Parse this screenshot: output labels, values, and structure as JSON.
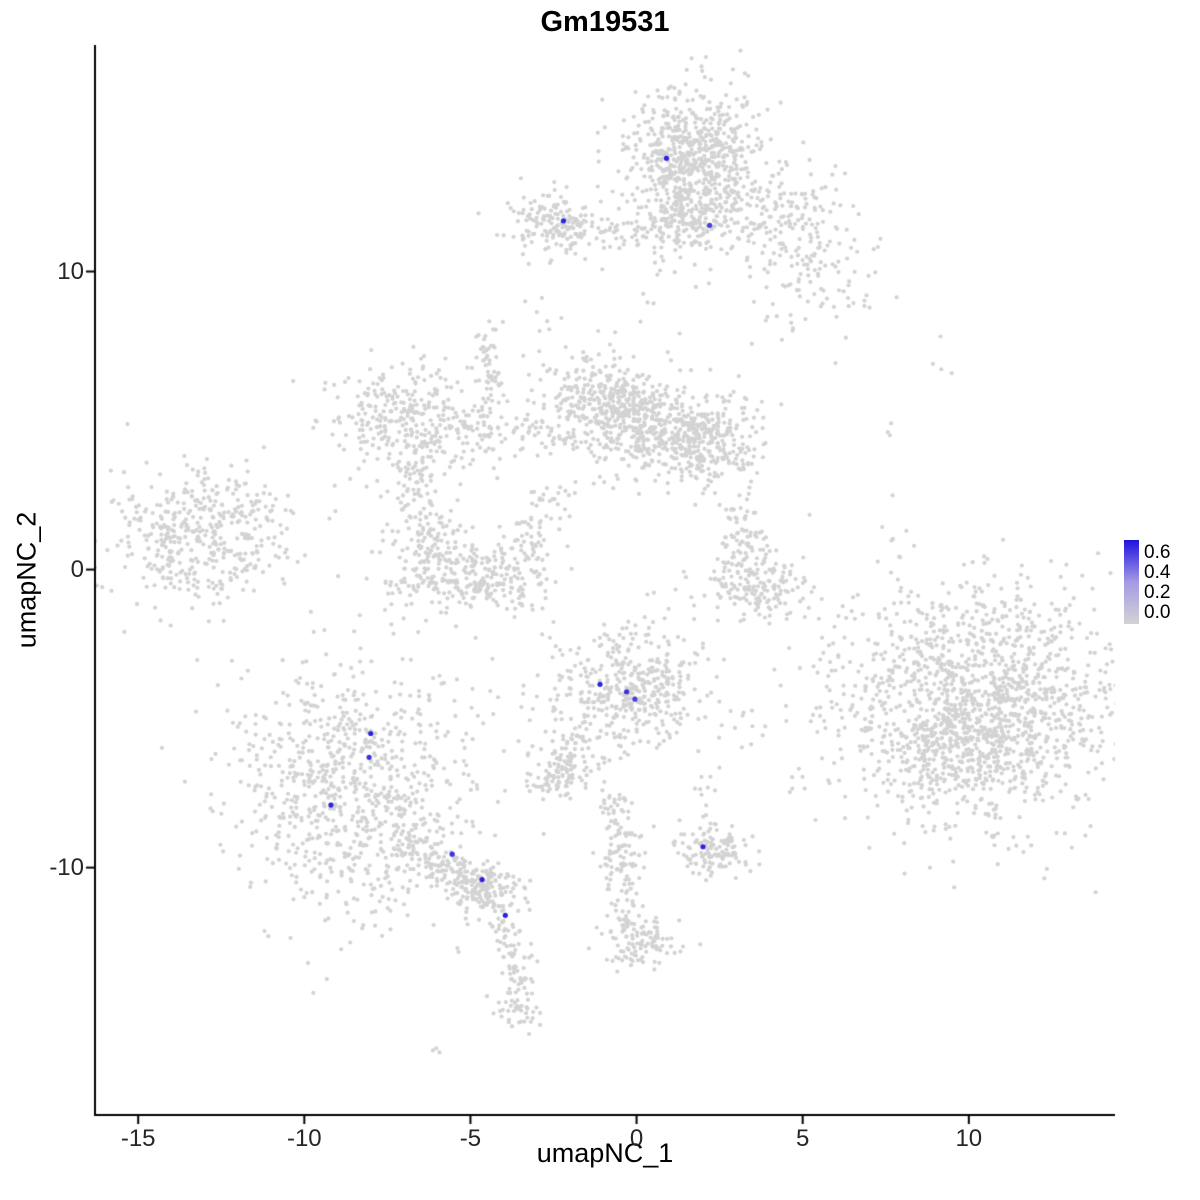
{
  "chart_data": {
    "type": "scatter",
    "title": "Gm19531",
    "xlabel": "umapNC_1",
    "ylabel": "umapNC_2",
    "xlim": [
      -16.3,
      14.4
    ],
    "ylim": [
      -18.3,
      17.6
    ],
    "x_ticks": [
      -15,
      -10,
      -5,
      0,
      5,
      10
    ],
    "y_ticks": [
      10,
      0,
      -10
    ],
    "grid": false,
    "background": "#ffffff",
    "point_color_background": "#d3d3d3",
    "legend": {
      "position": "right",
      "tick_labels": [
        "0.6",
        "0.4",
        "0.2",
        "0.0"
      ],
      "low_color": "#d3d3d3",
      "mid_color": "#a49ae4",
      "high_color": "#2012e0",
      "max_value": 0.65
    },
    "background_clusters": [
      {
        "shape": "blob",
        "cx": 1.7,
        "cy": 13.9,
        "sx": 1.0,
        "sy": 1.15,
        "n": 640
      },
      {
        "shape": "blob",
        "cx": 1.45,
        "cy": 11.7,
        "sx": 0.55,
        "sy": 0.75,
        "n": 150
      },
      {
        "shape": "blob",
        "cx": 3.9,
        "cy": 11.9,
        "sx": 1.25,
        "sy": 0.95,
        "n": 190
      },
      {
        "shape": "blob",
        "cx": 5.3,
        "cy": 10.0,
        "sx": 1.0,
        "sy": 1.0,
        "n": 85
      },
      {
        "shape": "blob",
        "cx": 6.3,
        "cy": 8.9,
        "sx": 0.5,
        "sy": 0.55,
        "n": 10
      },
      {
        "shape": "blob",
        "cx": -2.3,
        "cy": 11.6,
        "sx": 0.75,
        "sy": 0.5,
        "n": 165
      },
      {
        "shape": "strand",
        "x1": -1.3,
        "y1": 11.2,
        "x2": 0.9,
        "y2": 11.5,
        "w": 0.28,
        "n": 48
      },
      {
        "shape": "blob",
        "cx": -2.85,
        "cy": 8.75,
        "sx": 0.18,
        "sy": 0.35,
        "n": 6
      },
      {
        "shape": "blob",
        "cx": 0.1,
        "cy": 8.9,
        "sx": 0.2,
        "sy": 0.3,
        "n": 4
      },
      {
        "shape": "blob",
        "cx": -1.0,
        "cy": 5.6,
        "sx": 0.95,
        "sy": 0.85,
        "n": 320
      },
      {
        "shape": "blob",
        "cx": 0.4,
        "cy": 4.8,
        "sx": 0.9,
        "sy": 0.8,
        "n": 300
      },
      {
        "shape": "blob",
        "cx": 2.1,
        "cy": 4.2,
        "sx": 0.85,
        "sy": 0.75,
        "n": 290
      },
      {
        "shape": "blob",
        "cx": -6.8,
        "cy": 4.9,
        "sx": 1.1,
        "sy": 1.0,
        "n": 330
      },
      {
        "shape": "strand",
        "x1": -5.6,
        "y1": 4.7,
        "x2": -2.3,
        "y2": 4.5,
        "w": 0.45,
        "n": 85
      },
      {
        "shape": "blob",
        "cx": -4.4,
        "cy": 6.8,
        "sx": 0.28,
        "sy": 0.8,
        "n": 55
      },
      {
        "shape": "blob",
        "cx": -6.3,
        "cy": 0.4,
        "sx": 0.75,
        "sy": 0.9,
        "n": 170
      },
      {
        "shape": "blob",
        "cx": -4.4,
        "cy": -0.35,
        "sx": 0.9,
        "sy": 0.6,
        "n": 190
      },
      {
        "shape": "strand",
        "x1": -6.7,
        "y1": 3.5,
        "x2": -6.4,
        "y2": 1.4,
        "w": 0.3,
        "n": 55
      },
      {
        "shape": "strand",
        "x1": -3.6,
        "y1": 0.4,
        "x2": -2.3,
        "y2": 2.7,
        "w": 0.35,
        "n": 60
      },
      {
        "shape": "blob",
        "cx": -13.3,
        "cy": 1.1,
        "sx": 1.4,
        "sy": 1.2,
        "n": 430
      },
      {
        "shape": "blob",
        "cx": -11.6,
        "cy": 2.3,
        "sx": 0.5,
        "sy": 0.45,
        "n": 16
      },
      {
        "shape": "strand",
        "x1": 3.1,
        "y1": 1.9,
        "x2": 3.2,
        "y2": 0.4,
        "w": 0.28,
        "n": 65
      },
      {
        "shape": "blob",
        "cx": 3.6,
        "cy": -0.5,
        "sx": 0.8,
        "sy": 0.55,
        "n": 175
      },
      {
        "shape": "blob",
        "cx": 10.5,
        "cy": -4.6,
        "sx": 2.3,
        "sy": 2.0,
        "n": 1450
      },
      {
        "shape": "blob",
        "cx": 9.3,
        "cy": -5.9,
        "sx": 1.0,
        "sy": 0.9,
        "n": 190
      },
      {
        "shape": "blob",
        "cx": -0.2,
        "cy": -3.9,
        "sx": 1.15,
        "sy": 1.0,
        "n": 430
      },
      {
        "shape": "strand",
        "x1": -1.6,
        "y1": -5.3,
        "x2": -2.0,
        "y2": -6.2,
        "w": 0.3,
        "n": 30
      },
      {
        "shape": "blob",
        "cx": -2.3,
        "cy": -6.8,
        "sx": 0.6,
        "sy": 0.45,
        "n": 110
      },
      {
        "shape": "blob",
        "cx": -8.6,
        "cy": -7.4,
        "sx": 1.8,
        "sy": 2.1,
        "n": 830
      },
      {
        "shape": "strand",
        "x1": -7.0,
        "y1": -9.2,
        "x2": -4.4,
        "y2": -10.8,
        "w": 0.4,
        "n": 175
      },
      {
        "shape": "blob",
        "cx": -4.5,
        "cy": -10.8,
        "sx": 0.6,
        "sy": 0.5,
        "n": 120
      },
      {
        "shape": "strand",
        "x1": -4.0,
        "y1": -11.7,
        "x2": -3.5,
        "y2": -14.2,
        "w": 0.25,
        "n": 65
      },
      {
        "shape": "blob",
        "cx": -3.6,
        "cy": -14.8,
        "sx": 0.4,
        "sy": 0.4,
        "n": 45
      },
      {
        "shape": "blob",
        "cx": -6.05,
        "cy": -16.1,
        "sx": 0.15,
        "sy": 0.15,
        "n": 3
      },
      {
        "shape": "strand",
        "x1": -0.6,
        "y1": -7.6,
        "x2": -0.3,
        "y2": -11.9,
        "w": 0.3,
        "n": 125
      },
      {
        "shape": "blob",
        "cx": 0.2,
        "cy": -12.5,
        "sx": 0.6,
        "sy": 0.5,
        "n": 105
      },
      {
        "shape": "blob",
        "cx": 2.3,
        "cy": -9.4,
        "sx": 0.6,
        "sy": 0.45,
        "n": 125
      },
      {
        "shape": "blob",
        "cx": 2.1,
        "cy": -7.2,
        "sx": 0.3,
        "sy": 0.4,
        "n": 9
      },
      {
        "shape": "blob",
        "cx": 3.3,
        "cy": -4.9,
        "sx": 0.3,
        "sy": 0.5,
        "n": 7
      },
      {
        "shape": "blob",
        "cx": 4.9,
        "cy": -7.0,
        "sx": 0.3,
        "sy": 0.25,
        "n": 4
      },
      {
        "shape": "blob",
        "cx": 7.6,
        "cy": 0.6,
        "sx": 0.35,
        "sy": 0.5,
        "n": 8
      },
      {
        "shape": "blob",
        "cx": 9.3,
        "cy": 6.6,
        "sx": 0.25,
        "sy": 0.4,
        "n": 4
      },
      {
        "shape": "blob",
        "cx": 7.8,
        "cy": -1.6,
        "sx": 0.4,
        "sy": 0.4,
        "n": 5
      },
      {
        "shape": "blob",
        "cx": 7.7,
        "cy": 4.6,
        "sx": 0.2,
        "sy": 0.3,
        "n": 3
      }
    ],
    "expressing_cells": [
      {
        "x": 0.9,
        "y": 13.8,
        "value": 0.6
      },
      {
        "x": -2.2,
        "y": 11.7,
        "value": 0.6
      },
      {
        "x": 2.2,
        "y": 11.55,
        "value": 0.5
      },
      {
        "x": -1.1,
        "y": -3.85,
        "value": 0.6
      },
      {
        "x": -0.3,
        "y": -4.1,
        "value": 0.55
      },
      {
        "x": -0.05,
        "y": -4.35,
        "value": 0.5
      },
      {
        "x": -8.0,
        "y": -5.5,
        "value": 0.6
      },
      {
        "x": -8.05,
        "y": -6.3,
        "value": 0.55
      },
      {
        "x": -9.2,
        "y": -7.9,
        "value": 0.6
      },
      {
        "x": -5.55,
        "y": -9.55,
        "value": 0.55
      },
      {
        "x": -4.65,
        "y": -10.4,
        "value": 0.6
      },
      {
        "x": -3.95,
        "y": -11.6,
        "value": 0.6
      },
      {
        "x": 2.0,
        "y": -9.3,
        "value": 0.6
      }
    ]
  }
}
